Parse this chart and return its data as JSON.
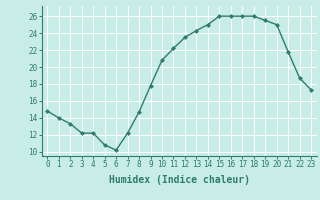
{
  "x": [
    0,
    1,
    2,
    3,
    4,
    5,
    6,
    7,
    8,
    9,
    10,
    11,
    12,
    13,
    14,
    15,
    16,
    17,
    18,
    19,
    20,
    21,
    22,
    23
  ],
  "y": [
    14.8,
    14.0,
    13.3,
    12.2,
    12.2,
    10.8,
    10.2,
    12.2,
    14.7,
    17.8,
    20.8,
    22.2,
    23.5,
    24.3,
    25.0,
    26.0,
    26.0,
    26.0,
    26.0,
    25.5,
    25.0,
    21.8,
    18.7,
    17.3
  ],
  "line_color": "#2e7d6e",
  "marker": "D",
  "marker_size": 2.0,
  "background_color": "#c8ece6",
  "grid_color": "#ffffff",
  "xlabel": "Humidex (Indice chaleur)",
  "xlim": [
    -0.5,
    23.5
  ],
  "ylim": [
    9.5,
    27.2
  ],
  "yticks": [
    10,
    12,
    14,
    16,
    18,
    20,
    22,
    24,
    26
  ],
  "xticks": [
    0,
    1,
    2,
    3,
    4,
    5,
    6,
    7,
    8,
    9,
    10,
    11,
    12,
    13,
    14,
    15,
    16,
    17,
    18,
    19,
    20,
    21,
    22,
    23
  ],
  "tick_fontsize": 5.5,
  "label_fontsize": 7.0,
  "linewidth": 1.0
}
